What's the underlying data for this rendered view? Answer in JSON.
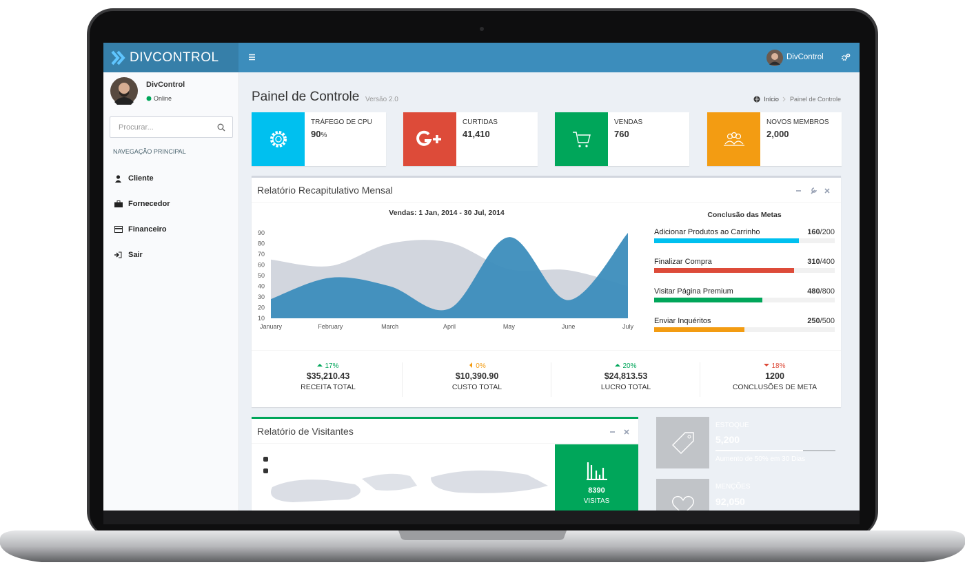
{
  "header": {
    "brand": "DIVCONTROL",
    "user": "DivControl"
  },
  "sidebar": {
    "user": "DivControl",
    "status": "Online",
    "search_placeholder": "Procurar...",
    "nav_header": "NAVEGAÇÃO PRINCIPAL",
    "menu": [
      "Cliente",
      "Fornecedor",
      "Financeiro",
      "Sair"
    ]
  },
  "content": {
    "title": "Painel de Controle",
    "subtitle": "Versão 2.0",
    "breadcrumb": [
      "Início",
      "Painel de Controle"
    ]
  },
  "info_boxes": [
    {
      "label": "TRÁFEGO DE CPU",
      "value": "90",
      "unit": "%",
      "color": "#00c0ef"
    },
    {
      "label": "CURTIDAS",
      "value": "41,410",
      "color": "#dd4b39"
    },
    {
      "label": "VENDAS",
      "value": "760",
      "color": "#00a65a"
    },
    {
      "label": "NOVOS MEMBROS",
      "value": "2,000",
      "color": "#f39c12"
    }
  ],
  "monthly_report": {
    "title": "Relatório Recapitulativo Mensal",
    "goals_title": "Conclusão das Metas",
    "goals": [
      {
        "label": "Adicionar Produtos ao Carrinho",
        "value": 160,
        "max": 200,
        "max_label": "/200",
        "color": "#00c0ef"
      },
      {
        "label": "Finalizar Compra",
        "value": 310,
        "max": 400,
        "max_label": "/400",
        "color": "#dd4b39"
      },
      {
        "label": "Visitar Página Premium",
        "value": 480,
        "max": 800,
        "max_label": "/800",
        "color": "#00a65a"
      },
      {
        "label": "Enviar Inquéritos",
        "value": 250,
        "max": 500,
        "max_label": "/500",
        "color": "#f39c12"
      }
    ],
    "stats": [
      {
        "change": "17%",
        "direction": "up",
        "color": "#00a65a",
        "value": "$35,210.43",
        "label": "RECEITA TOTAL"
      },
      {
        "change": "0%",
        "direction": "left",
        "color": "#f39c12",
        "value": "$10,390.90",
        "label": "CUSTO TOTAL"
      },
      {
        "change": "20%",
        "direction": "up",
        "color": "#00a65a",
        "value": "$24,813.53",
        "label": "LUCRO TOTAL"
      },
      {
        "change": "18%",
        "direction": "down",
        "color": "#dd4b39",
        "value": "1200",
        "label": "CONCLUSÕES DE META"
      }
    ]
  },
  "chart_data": {
    "type": "area",
    "title": "Vendas: 1 Jan, 2014 - 30 Jul, 2014",
    "categories": [
      "January",
      "February",
      "March",
      "April",
      "May",
      "June",
      "July"
    ],
    "series": [
      {
        "color": "#d2d6de",
        "values": [
          65,
          59,
          80,
          81,
          56,
          55,
          40
        ]
      },
      {
        "color": "#3c8dbc",
        "values": [
          28,
          48,
          40,
          19,
          86,
          27,
          90
        ]
      }
    ],
    "ylim": [
      10,
      90
    ],
    "yticks": [
      10,
      20,
      30,
      40,
      50,
      60,
      70,
      80,
      90
    ]
  },
  "visitors": {
    "title": "Relatório de Visitantes",
    "stat_value": "8390",
    "stat_label": "VISITAS"
  },
  "side_boxes": [
    {
      "label": "ESTOQUE",
      "value": "5,200",
      "description": "Aumento de 50% em 30 Dias",
      "color": "#f39c12"
    },
    {
      "label": "MENÇÕES",
      "value": "92,050",
      "color": "#00a65a"
    }
  ]
}
